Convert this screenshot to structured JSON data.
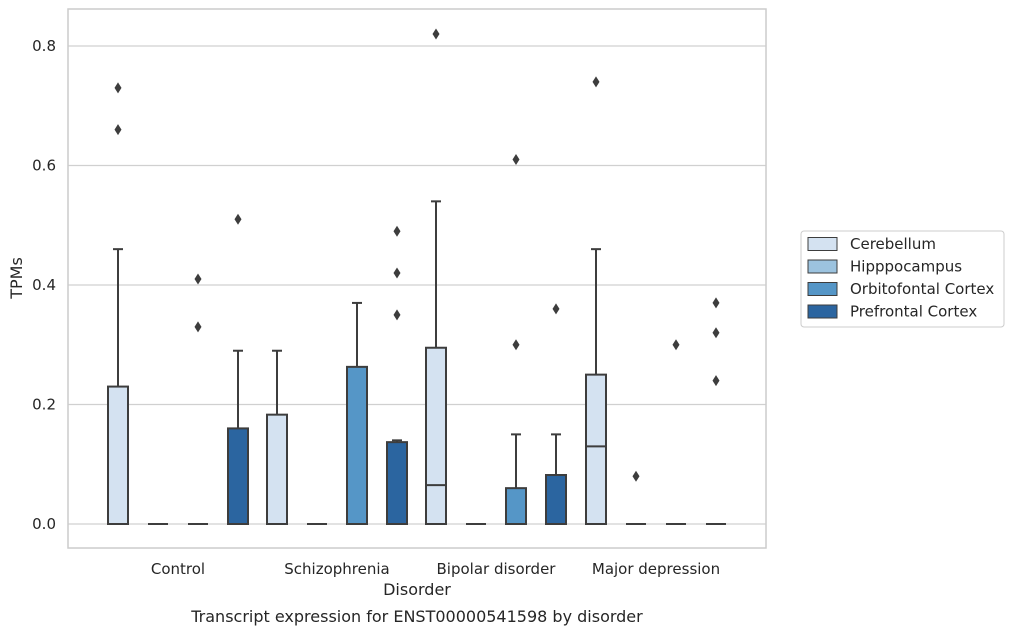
{
  "chart_data": {
    "type": "box",
    "title": "",
    "caption": "Transcript expression for ENST00000541598 by disorder",
    "xlabel": "Disorder",
    "ylabel": "TPMs",
    "categories": [
      "Control",
      "Schizophrenia",
      "Bipolar disorder",
      "Major depression"
    ],
    "ylim": [
      -0.04,
      0.86
    ],
    "yticks": [
      0.0,
      0.2,
      0.4,
      0.6,
      0.8
    ],
    "ytick_labels": [
      "0.0",
      "0.2",
      "0.4",
      "0.6",
      "0.8"
    ],
    "grid": "horizontal",
    "legend_position": "right",
    "series": [
      {
        "name": "Cerebellum",
        "color": "#d4e2f1",
        "boxes": [
          {
            "q1": 0.0,
            "median": 0.0,
            "q3": 0.23,
            "whisker_low": 0.0,
            "whisker_high": 0.46,
            "outliers": [
              0.66,
              0.73
            ]
          },
          {
            "q1": 0.0,
            "median": 0.0,
            "q3": 0.183,
            "whisker_low": 0.0,
            "whisker_high": 0.29,
            "outliers": []
          },
          {
            "q1": 0.0,
            "median": 0.065,
            "q3": 0.295,
            "whisker_low": 0.0,
            "whisker_high": 0.54,
            "outliers": [
              0.82
            ]
          },
          {
            "q1": 0.0,
            "median": 0.13,
            "q3": 0.25,
            "whisker_low": 0.0,
            "whisker_high": 0.46,
            "outliers": [
              0.74
            ]
          }
        ]
      },
      {
        "name": "Hipppocampus",
        "color": "#9cc3df",
        "boxes": [
          {
            "q1": 0.0,
            "median": 0.0,
            "q3": 0.0,
            "whisker_low": 0.0,
            "whisker_high": 0.0,
            "outliers": []
          },
          {
            "q1": 0.0,
            "median": 0.0,
            "q3": 0.0,
            "whisker_low": 0.0,
            "whisker_high": 0.0,
            "outliers": []
          },
          {
            "q1": 0.0,
            "median": 0.0,
            "q3": 0.0,
            "whisker_low": 0.0,
            "whisker_high": 0.0,
            "outliers": []
          },
          {
            "q1": 0.0,
            "median": 0.0,
            "q3": 0.0,
            "whisker_low": 0.0,
            "whisker_high": 0.0,
            "outliers": [
              0.08
            ]
          }
        ]
      },
      {
        "name": "Orbitofontal Cortex",
        "color": "#5596c7",
        "boxes": [
          {
            "q1": 0.0,
            "median": 0.0,
            "q3": 0.0,
            "whisker_low": 0.0,
            "whisker_high": 0.0,
            "outliers": [
              0.33,
              0.41
            ]
          },
          {
            "q1": 0.0,
            "median": 0.0,
            "q3": 0.263,
            "whisker_low": 0.0,
            "whisker_high": 0.37,
            "outliers": []
          },
          {
            "q1": 0.0,
            "median": 0.0,
            "q3": 0.06,
            "whisker_low": 0.0,
            "whisker_high": 0.15,
            "outliers": [
              0.3,
              0.61
            ]
          },
          {
            "q1": 0.0,
            "median": 0.0,
            "q3": 0.0,
            "whisker_low": 0.0,
            "whisker_high": 0.0,
            "outliers": [
              0.3
            ]
          }
        ]
      },
      {
        "name": "Prefrontal Cortex",
        "color": "#2b65a0",
        "boxes": [
          {
            "q1": 0.0,
            "median": 0.0,
            "q3": 0.16,
            "whisker_low": 0.0,
            "whisker_high": 0.29,
            "outliers": [
              0.51
            ]
          },
          {
            "q1": 0.0,
            "median": 0.0,
            "q3": 0.137,
            "whisker_low": 0.0,
            "whisker_high": 0.14,
            "outliers": [
              0.35,
              0.42,
              0.49
            ]
          },
          {
            "q1": 0.0,
            "median": 0.0,
            "q3": 0.082,
            "whisker_low": 0.0,
            "whisker_high": 0.15,
            "outliers": [
              0.36
            ]
          },
          {
            "q1": 0.0,
            "median": 0.0,
            "q3": 0.0,
            "whisker_low": 0.0,
            "whisker_high": 0.0,
            "outliers": [
              0.24,
              0.32,
              0.37
            ]
          }
        ]
      }
    ]
  }
}
